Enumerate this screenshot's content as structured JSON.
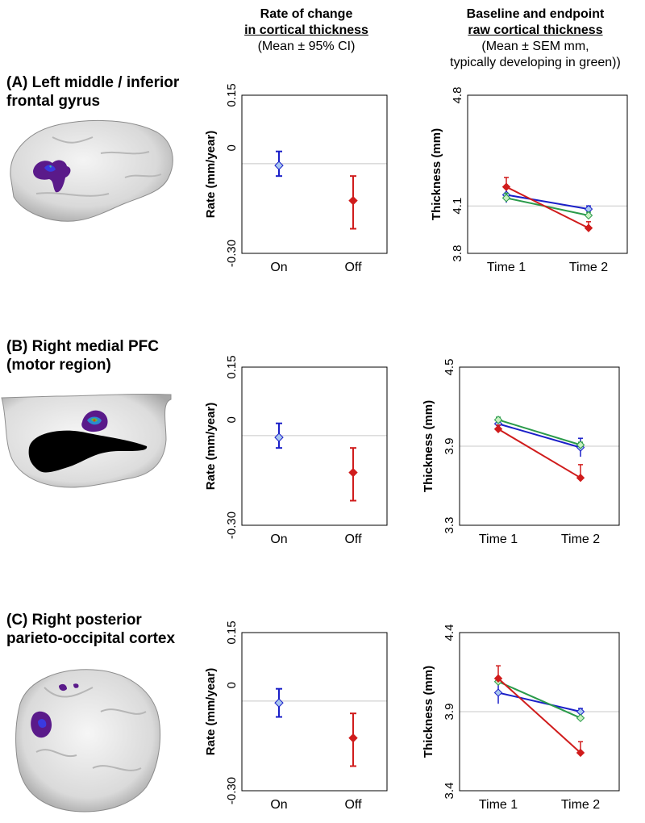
{
  "header": {
    "rate_title": "Rate of change",
    "rate_title2": "in cortical thickness",
    "rate_sub": "(Mean ± 95% CI)",
    "thick_title": "Baseline and endpoint",
    "thick_title2": "raw cortical thickness",
    "thick_sub1": "(Mean ± SEM mm,",
    "thick_sub2": "typically developing in green))"
  },
  "panels": [
    {
      "label1": "(A) Left middle / inferior",
      "label2": "frontal gyrus"
    },
    {
      "label1": "(B) Right medial PFC",
      "label2": "(motor region)"
    },
    {
      "label1": "(C) Right posterior",
      "label2": "parieto-occipital cortex"
    }
  ],
  "colors": {
    "on": "#1a1fc8",
    "off": "#d01c1c",
    "td": "#2a9a4a",
    "on_fill": "#a9c8f0",
    "td_fill": "#c8f0c0",
    "ref_line": "#c8c8c8"
  },
  "chart_data": [
    {
      "type": "scatter",
      "panel": "A",
      "title": "Rate of change in cortical thickness",
      "ylabel": "Rate (mm/year)",
      "ylim": [
        -0.3,
        0.15
      ],
      "yticks": [
        "0.15",
        "0",
        "-0.30"
      ],
      "categories": [
        "On",
        "Off"
      ],
      "series": [
        {
          "name": "On",
          "mean": -0.05,
          "ci_low": -0.08,
          "ci_high": -0.01
        },
        {
          "name": "Off",
          "mean": -0.15,
          "ci_low": -0.23,
          "ci_high": -0.08
        }
      ]
    },
    {
      "type": "line",
      "panel": "A",
      "title": "Baseline and endpoint raw cortical thickness",
      "ylabel": "Thickness (mm)",
      "ylim": [
        3.8,
        4.8
      ],
      "yticks": [
        "4.8",
        "4.1",
        "3.8"
      ],
      "ref": 4.1,
      "categories": [
        "Time 1",
        "Time 2"
      ],
      "series": [
        {
          "name": "On",
          "values": [
            4.17,
            4.08
          ],
          "err": [
            0.05,
            0.02
          ]
        },
        {
          "name": "Typically developing",
          "values": [
            4.15,
            4.04
          ],
          "err": [
            0.03,
            0.02
          ]
        },
        {
          "name": "Off",
          "values": [
            4.22,
            3.96
          ],
          "err": [
            0.06,
            0.04
          ]
        }
      ]
    },
    {
      "type": "scatter",
      "panel": "B",
      "title": "Rate of change in cortical thickness",
      "ylabel": "Rate (mm/year)",
      "ylim": [
        -0.3,
        0.15
      ],
      "yticks": [
        "0.15",
        "0",
        "-0.30"
      ],
      "categories": [
        "On",
        "Off"
      ],
      "series": [
        {
          "name": "On",
          "mean": -0.05,
          "ci_low": -0.08,
          "ci_high": -0.01
        },
        {
          "name": "Off",
          "mean": -0.15,
          "ci_low": -0.23,
          "ci_high": -0.08
        }
      ]
    },
    {
      "type": "line",
      "panel": "B",
      "title": "Baseline and endpoint raw cortical thickness",
      "ylabel": "Thickness (mm)",
      "ylim": [
        3.3,
        4.5
      ],
      "yticks": [
        "4.5",
        "3.9",
        "3.3"
      ],
      "ref": 3.9,
      "categories": [
        "Time 1",
        "Time 2"
      ],
      "series": [
        {
          "name": "On",
          "values": [
            4.07,
            3.89
          ],
          "err": [
            0.03,
            0.07
          ]
        },
        {
          "name": "Typically developing",
          "values": [
            4.1,
            3.91
          ],
          "err": [
            0.02,
            0.02
          ]
        },
        {
          "name": "Off",
          "values": [
            4.03,
            3.66
          ],
          "err": [
            0.03,
            0.1
          ]
        }
      ]
    },
    {
      "type": "scatter",
      "panel": "C",
      "title": "Rate of change in cortical thickness",
      "ylabel": "Rate (mm/year)",
      "ylim": [
        -0.3,
        0.15
      ],
      "yticks": [
        "0.15",
        "0",
        "-0.30"
      ],
      "categories": [
        "On",
        "Off"
      ],
      "series": [
        {
          "name": "On",
          "mean": -0.05,
          "ci_low": -0.09,
          "ci_high": -0.01
        },
        {
          "name": "Off",
          "mean": -0.15,
          "ci_low": -0.23,
          "ci_high": -0.08
        }
      ]
    },
    {
      "type": "line",
      "panel": "C",
      "title": "Baseline and endpoint raw cortical thickness",
      "ylabel": "Thickness (mm)",
      "ylim": [
        3.4,
        4.4
      ],
      "yticks": [
        "4.4",
        "3.9",
        "3.4"
      ],
      "ref": 3.9,
      "categories": [
        "Time 1",
        "Time 2"
      ],
      "series": [
        {
          "name": "On",
          "values": [
            4.02,
            3.9
          ],
          "err": [
            0.07,
            0.02
          ]
        },
        {
          "name": "Typically developing",
          "values": [
            4.09,
            3.86
          ],
          "err": [
            0.02,
            0.01
          ]
        },
        {
          "name": "Off",
          "values": [
            4.11,
            3.64
          ],
          "err": [
            0.08,
            0.07
          ]
        }
      ]
    }
  ]
}
